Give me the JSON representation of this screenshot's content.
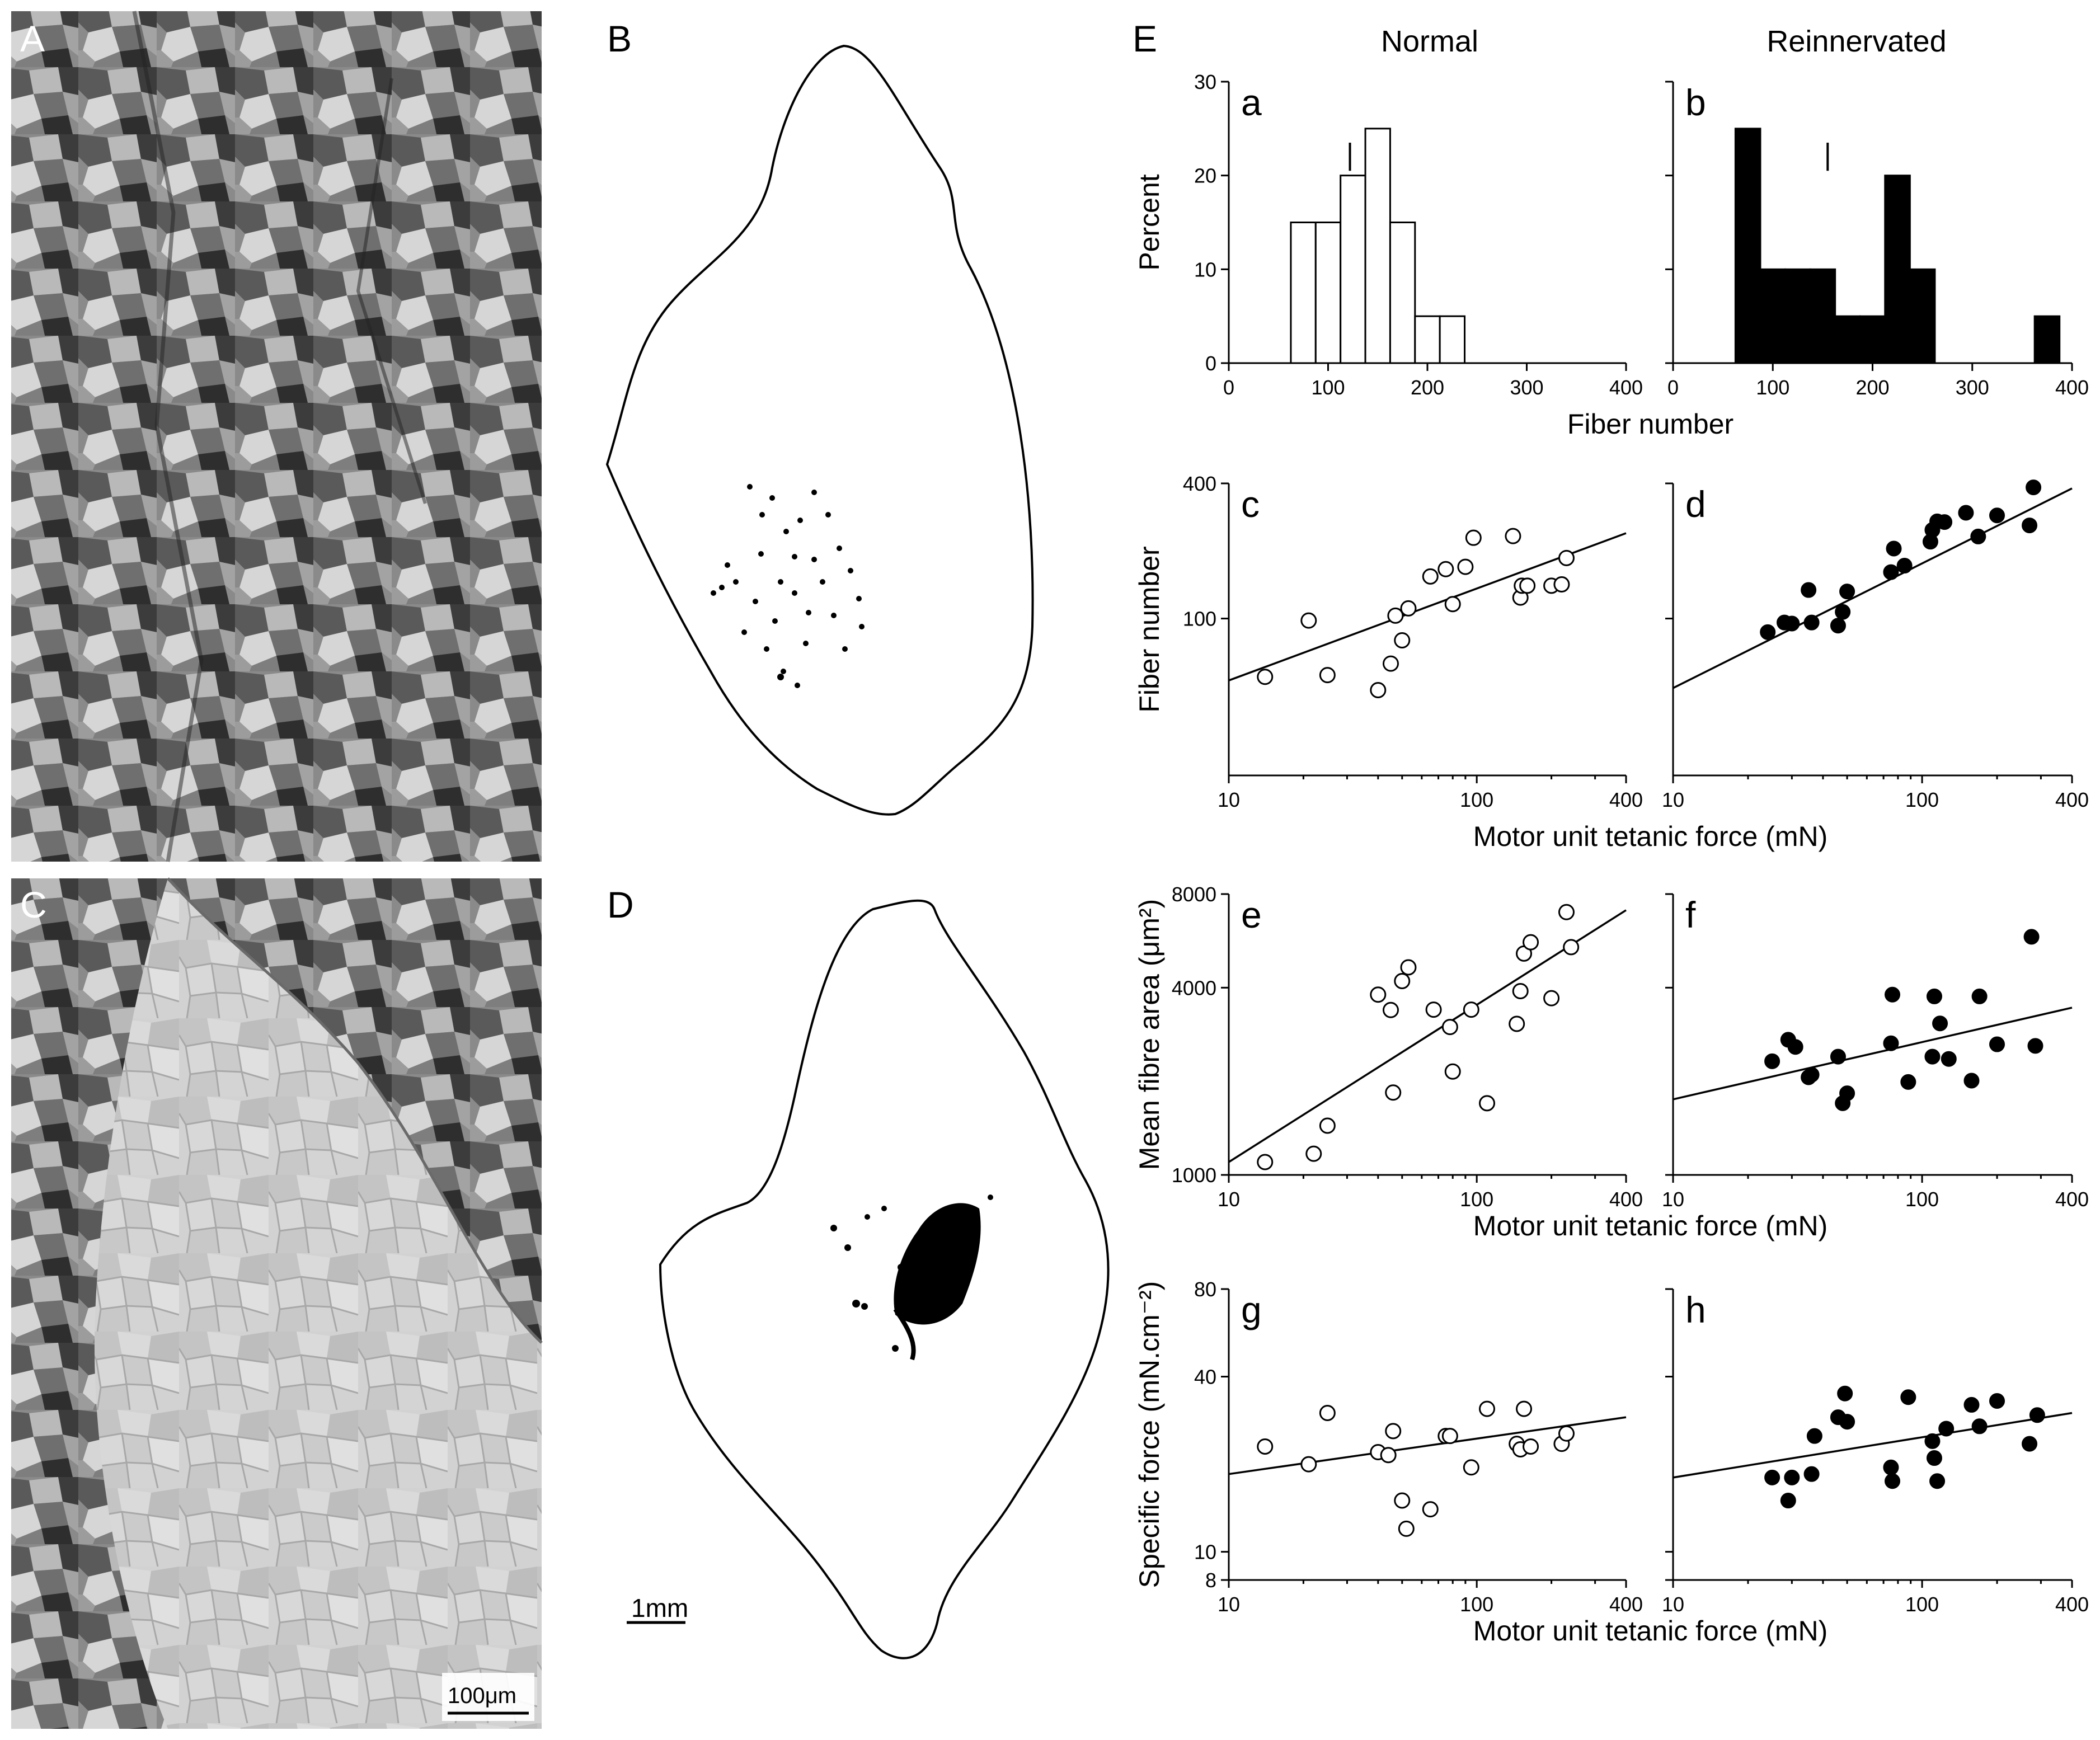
{
  "panels": {
    "A": "A",
    "B": "B",
    "C": "C",
    "D": "D",
    "E": "E"
  },
  "scale_bars": {
    "micrograph": "100μm",
    "outline": "1mm"
  },
  "columns": {
    "left": "Normal",
    "right": "Reinnervated"
  },
  "chart_data": [
    {
      "id": "a",
      "label": "a",
      "type": "bar",
      "style": "open",
      "xlabel": "Fiber number",
      "ylabel": "Percent",
      "xlim": [
        0,
        400
      ],
      "ylim": [
        0,
        30
      ],
      "xticks": [
        0,
        100,
        200,
        300,
        400
      ],
      "yticks": [
        0,
        10,
        20,
        30
      ],
      "bin_width": 25,
      "bins": [
        {
          "x0": 62.5,
          "value": 15
        },
        {
          "x0": 87.5,
          "value": 15
        },
        {
          "x0": 112.5,
          "value": 20
        },
        {
          "x0": 137.5,
          "value": 25
        },
        {
          "x0": 162.5,
          "value": 15
        },
        {
          "x0": 187.5,
          "value": 5
        },
        {
          "x0": 212.5,
          "value": 5
        }
      ],
      "mean_marker": 122
    },
    {
      "id": "b",
      "label": "b",
      "type": "bar",
      "style": "filled",
      "xlabel": "Fiber number",
      "ylabel": "",
      "xlim": [
        0,
        400
      ],
      "ylim": [
        0,
        30
      ],
      "xticks": [
        0,
        100,
        200,
        300,
        400
      ],
      "yticks": [
        0,
        10,
        20,
        30
      ],
      "bin_width": 25,
      "bins": [
        {
          "x0": 62.5,
          "value": 25
        },
        {
          "x0": 87.5,
          "value": 10
        },
        {
          "x0": 112.5,
          "value": 10
        },
        {
          "x0": 137.5,
          "value": 10
        },
        {
          "x0": 162.5,
          "value": 5
        },
        {
          "x0": 187.5,
          "value": 5
        },
        {
          "x0": 212.5,
          "value": 20
        },
        {
          "x0": 237.5,
          "value": 10
        },
        {
          "x0": 362.5,
          "value": 5
        }
      ],
      "mean_marker": 155
    },
    {
      "id": "c",
      "label": "c",
      "type": "scatter",
      "style": "open",
      "scale": "log",
      "xlabel": "Motor unit tetanic force (mN)",
      "ylabel": "Fiber number",
      "xlim": [
        10,
        400
      ],
      "ylim": [
        20,
        400
      ],
      "xticks": [
        10,
        100,
        400
      ],
      "yticks": [
        100,
        400
      ],
      "points": [
        [
          14,
          55
        ],
        [
          21,
          98
        ],
        [
          25,
          56
        ],
        [
          40,
          48
        ],
        [
          45,
          63
        ],
        [
          47,
          103
        ],
        [
          50,
          80
        ],
        [
          53,
          111
        ],
        [
          65,
          154
        ],
        [
          75,
          166
        ],
        [
          80,
          116
        ],
        [
          90,
          170
        ],
        [
          97,
          229
        ],
        [
          140,
          233
        ],
        [
          150,
          124
        ],
        [
          152,
          140
        ],
        [
          160,
          140
        ],
        [
          200,
          140
        ],
        [
          220,
          142
        ],
        [
          230,
          186
        ]
      ],
      "fit": [
        [
          10,
          53
        ],
        [
          400,
          240
        ]
      ]
    },
    {
      "id": "d",
      "label": "d",
      "type": "scatter",
      "style": "filled",
      "scale": "log",
      "xlabel": "Motor unit tetanic force (mN)",
      "ylabel": "",
      "xlim": [
        10,
        400
      ],
      "ylim": [
        20,
        400
      ],
      "xticks": [
        10,
        100,
        400
      ],
      "yticks": [
        100,
        400
      ],
      "points": [
        [
          24,
          87
        ],
        [
          28,
          96
        ],
        [
          30,
          95
        ],
        [
          35,
          134
        ],
        [
          36,
          96
        ],
        [
          46,
          93
        ],
        [
          48,
          107
        ],
        [
          50,
          132
        ],
        [
          75,
          161
        ],
        [
          77,
          205
        ],
        [
          85,
          172
        ],
        [
          108,
          220
        ],
        [
          110,
          248
        ],
        [
          115,
          271
        ],
        [
          123,
          269
        ],
        [
          150,
          296
        ],
        [
          168,
          232
        ],
        [
          200,
          288
        ],
        [
          270,
          260
        ],
        [
          280,
          384
        ]
      ],
      "fit": [
        [
          10,
          49
        ],
        [
          400,
          380
        ]
      ]
    },
    {
      "id": "e",
      "label": "e",
      "type": "scatter",
      "style": "open",
      "scale": "log",
      "xlabel": "Motor unit tetanic force (mN)",
      "ylabel": "Mean fibre area (μm²)",
      "xlim": [
        10,
        400
      ],
      "ylim": [
        1000,
        8000
      ],
      "xticks": [
        10,
        100,
        400
      ],
      "yticks": [
        1000,
        4000,
        8000
      ],
      "points": [
        [
          14,
          1100
        ],
        [
          22,
          1170
        ],
        [
          25,
          1440
        ],
        [
          40,
          3800
        ],
        [
          45,
          3390
        ],
        [
          46,
          1840
        ],
        [
          50,
          4200
        ],
        [
          53,
          4650
        ],
        [
          67,
          3400
        ],
        [
          78,
          2990
        ],
        [
          80,
          2150
        ],
        [
          95,
          3400
        ],
        [
          110,
          1700
        ],
        [
          145,
          3060
        ],
        [
          150,
          3900
        ],
        [
          155,
          5150
        ],
        [
          165,
          5600
        ],
        [
          200,
          3700
        ],
        [
          230,
          7000
        ],
        [
          240,
          5400
        ]
      ],
      "fit": [
        [
          10,
          1100
        ],
        [
          400,
          7100
        ]
      ]
    },
    {
      "id": "f",
      "label": "f",
      "type": "scatter",
      "style": "filled",
      "scale": "log",
      "xlabel": "Motor unit tetanic force (mN)",
      "ylabel": "",
      "xlim": [
        10,
        400
      ],
      "ylim": [
        1000,
        8000
      ],
      "xticks": [
        10,
        100,
        400
      ],
      "yticks": [
        1000,
        4000,
        8000
      ],
      "points": [
        [
          25,
          2320
        ],
        [
          29,
          2720
        ],
        [
          31,
          2580
        ],
        [
          35,
          2060
        ],
        [
          36,
          2100
        ],
        [
          46,
          2400
        ],
        [
          48,
          1700
        ],
        [
          50,
          1830
        ],
        [
          75,
          2650
        ],
        [
          76,
          3800
        ],
        [
          88,
          1990
        ],
        [
          110,
          2400
        ],
        [
          112,
          3750
        ],
        [
          118,
          3070
        ],
        [
          128,
          2360
        ],
        [
          158,
          2010
        ],
        [
          170,
          3750
        ],
        [
          200,
          2630
        ],
        [
          275,
          5830
        ],
        [
          285,
          2600
        ]
      ],
      "fit": [
        [
          10,
          1750
        ],
        [
          400,
          3450
        ]
      ]
    },
    {
      "id": "g",
      "label": "g",
      "type": "scatter",
      "style": "open",
      "scale": "log",
      "xlabel": "Motor unit tetanic force (mN)",
      "ylabel": "Specific force (mN.cm⁻²)",
      "xlim": [
        10,
        400
      ],
      "ylim": [
        8,
        80
      ],
      "xticks": [
        10,
        100,
        400
      ],
      "yticks": [
        8,
        10,
        40,
        80
      ],
      "points": [
        [
          14,
          23
        ],
        [
          21,
          20
        ],
        [
          25,
          30
        ],
        [
          40,
          22
        ],
        [
          44,
          21.5
        ],
        [
          46,
          26
        ],
        [
          50,
          15
        ],
        [
          52,
          12
        ],
        [
          65,
          14
        ],
        [
          75,
          25
        ],
        [
          78,
          25
        ],
        [
          95,
          19.5
        ],
        [
          110,
          31
        ],
        [
          145,
          23.5
        ],
        [
          150,
          22.5
        ],
        [
          155,
          31
        ],
        [
          165,
          23
        ],
        [
          220,
          23.5
        ],
        [
          230,
          25.5
        ]
      ],
      "fit": [
        [
          10,
          18.5
        ],
        [
          400,
          29
        ]
      ]
    },
    {
      "id": "h",
      "label": "h",
      "type": "scatter",
      "style": "filled",
      "scale": "log",
      "xlabel": "Motor unit tetanic force (mN)",
      "ylabel": "",
      "xlim": [
        10,
        400
      ],
      "ylim": [
        8,
        80
      ],
      "xticks": [
        10,
        100,
        400
      ],
      "yticks": [
        8,
        10,
        40,
        80
      ],
      "points": [
        [
          25,
          18
        ],
        [
          29,
          15
        ],
        [
          30,
          18
        ],
        [
          36,
          18.5
        ],
        [
          37,
          25
        ],
        [
          46,
          29
        ],
        [
          49,
          35
        ],
        [
          50,
          28
        ],
        [
          75,
          19.5
        ],
        [
          76,
          17.5
        ],
        [
          88,
          34
        ],
        [
          110,
          24
        ],
        [
          112,
          21
        ],
        [
          115,
          17.5
        ],
        [
          125,
          26.5
        ],
        [
          158,
          32
        ],
        [
          170,
          27
        ],
        [
          200,
          33
        ],
        [
          270,
          23.5
        ],
        [
          290,
          29.5
        ]
      ],
      "fit": [
        [
          10,
          18
        ],
        [
          400,
          30
        ]
      ]
    }
  ]
}
